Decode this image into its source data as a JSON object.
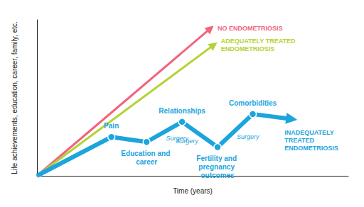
{
  "chart_data": {
    "type": "line",
    "x_label": "Time (years)",
    "y_label": "Life achievements, education, career, family, etc.",
    "xlim": [
      0,
      100
    ],
    "ylim": [
      0,
      100
    ],
    "xticks": [],
    "yticks": [],
    "tick_labels": false,
    "grid": false,
    "series": [
      {
        "name": "NO ENDOMETRIOSIS",
        "color": "#f2637e",
        "marker": "none",
        "line_style": "solid",
        "x": [
          0,
          55.7
        ],
        "values": [
          0,
          94.5
        ]
      },
      {
        "name": "ADEQUATELY TREATED ENDOMETRIOSIS",
        "color": "#b3d334",
        "marker": "none",
        "line_style": "solid",
        "x": [
          0,
          56.8
        ],
        "values": [
          0,
          83.9
        ]
      },
      {
        "name": "INADEQUATELY TREATED ENDOMETRIOSIS",
        "color": "#1ca4dc",
        "marker": "circle",
        "line_style": "solid",
        "x": [
          0,
          23.9,
          35.2,
          46.6,
          58.0,
          69.3,
          81.8
        ],
        "values": [
          0,
          24.9,
          21.7,
          34.6,
          18.4,
          39.6,
          36.4
        ],
        "point_labels": [
          null,
          "Pain",
          "Education and career",
          "Relationships",
          "Fertility and pregnancy outcomes",
          "Comorbidities",
          null
        ],
        "segment_labels": [
          null,
          null,
          "Surgery",
          "Surgery",
          "Surgery",
          null
        ]
      }
    ]
  }
}
